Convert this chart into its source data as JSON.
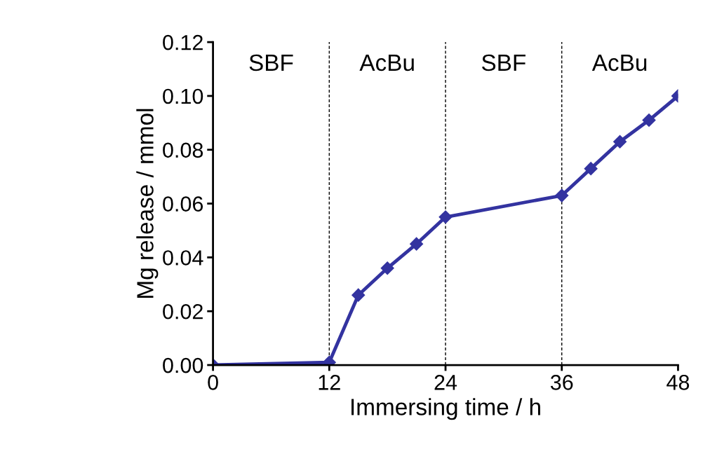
{
  "chart_data": {
    "type": "line",
    "xlabel": "Immersing time / h",
    "ylabel": "Mg release / mmol",
    "x": [
      0,
      12,
      15,
      18,
      21,
      24,
      36,
      39,
      42,
      45,
      48
    ],
    "series": [
      {
        "color": "#3333a0",
        "values": [
          0,
          0.001,
          0.026,
          0.036,
          0.045,
          0.055,
          0.063,
          0.073,
          0.083,
          0.091,
          0.1
        ]
      }
    ],
    "xlim": [
      0,
      48
    ],
    "xticks": [
      0,
      12,
      24,
      36,
      48
    ],
    "ylim": [
      0,
      0.12
    ],
    "yticks": [
      {
        "value": 0,
        "label": "0.00"
      },
      {
        "value": 0.02,
        "label": "0.02"
      },
      {
        "value": 0.04,
        "label": "0.04"
      },
      {
        "value": 0.06,
        "label": "0.06"
      },
      {
        "value": 0.08,
        "label": "0.08"
      },
      {
        "value": 0.1,
        "label": "0.10"
      },
      {
        "value": 0.12,
        "label": "0.12"
      }
    ],
    "ref_lines": [
      {
        "axis": "x",
        "value": 12,
        "color": "#000000",
        "line_style": "dashed"
      },
      {
        "axis": "x",
        "value": 24,
        "color": "#000000",
        "line_style": "dashed"
      },
      {
        "axis": "x",
        "value": 36,
        "color": "#000000",
        "line_style": "dashed"
      }
    ],
    "annotations": [
      "SBF",
      "AcBu",
      "SBF",
      "AcBu"
    ],
    "marker": "diamond",
    "line_style": "solid",
    "grid": false,
    "legend": false
  }
}
